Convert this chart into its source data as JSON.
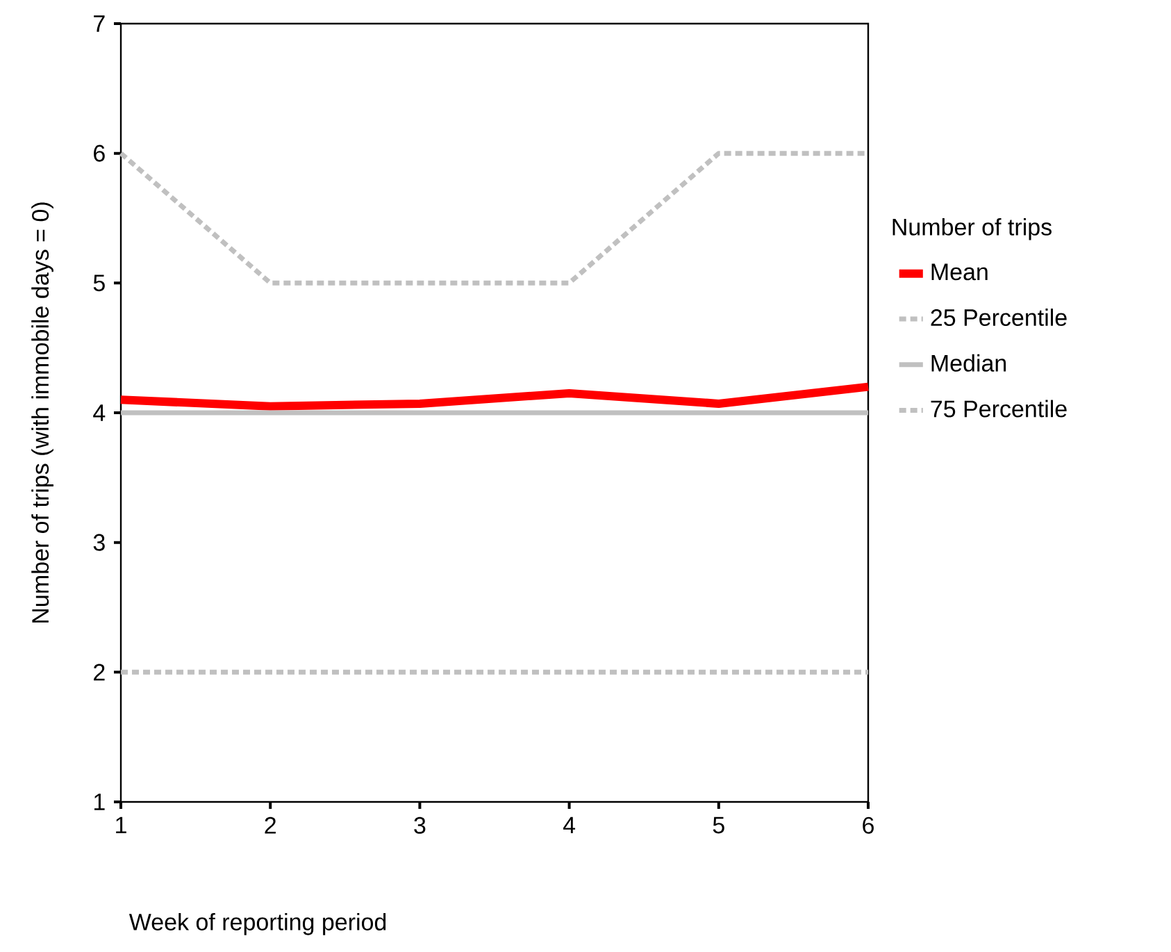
{
  "chart_data": {
    "type": "line",
    "xlabel": "Week of reporting period",
    "ylabel": "Number of trips (with immobile days = 0)",
    "legend_title": "Number of trips",
    "legend": "right",
    "x": [
      1,
      2,
      3,
      4,
      5,
      6
    ],
    "xlim": [
      1,
      6
    ],
    "xticks": [
      1,
      2,
      3,
      4,
      5,
      6
    ],
    "ylim": [
      1,
      7
    ],
    "yticks": [
      1,
      2,
      3,
      4,
      5,
      6,
      7
    ],
    "series": [
      {
        "name": "Mean",
        "color": "#ff0000",
        "line_style": "solid",
        "values": [
          4.1,
          4.05,
          4.07,
          4.15,
          4.07,
          4.2
        ]
      },
      {
        "name": "25 Percentile",
        "color": "#c0c0c0",
        "line_style": "dotted",
        "values": [
          2,
          2,
          2,
          2,
          2,
          2
        ]
      },
      {
        "name": "Median",
        "color": "#c0c0c0",
        "line_style": "solid",
        "values": [
          4,
          4,
          4,
          4,
          4,
          4
        ]
      },
      {
        "name": "75 Percentile",
        "color": "#c0c0c0",
        "line_style": "dotted",
        "values": [
          6,
          5,
          5,
          5,
          6,
          6
        ]
      }
    ]
  }
}
